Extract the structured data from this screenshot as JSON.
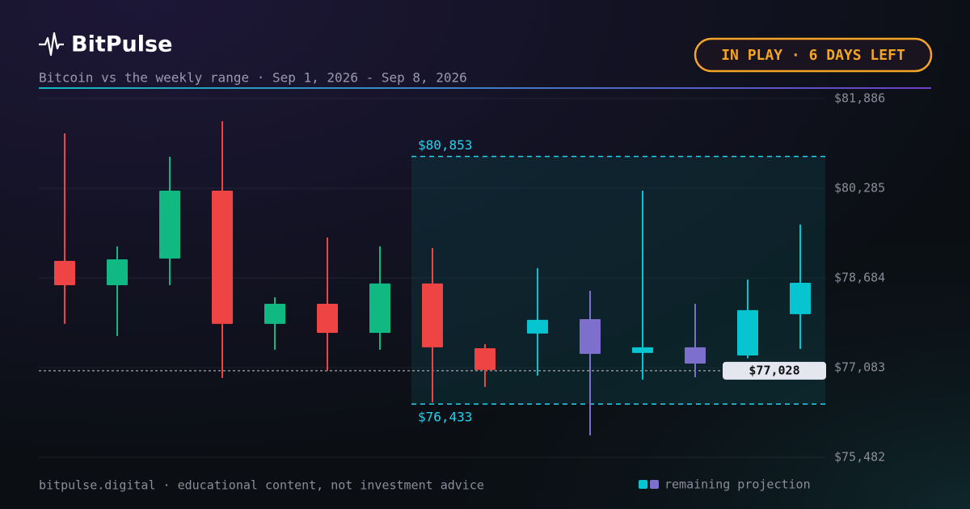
{
  "header": {
    "brand": "BitPulse",
    "subtitle": "Bitcoin vs the weekly range · Sep 1, 2026 - Sep 8, 2026",
    "badge": "IN PLAY · 6 DAYS LEFT"
  },
  "footer": {
    "note": "bitpulse.digital · educational content, not investment advice",
    "legend": "remaining projection"
  },
  "chart_data": {
    "type": "candlestick",
    "ylim": [
      75482,
      81886
    ],
    "yticks": [
      {
        "value": 81886,
        "label": "$81,886"
      },
      {
        "value": 80285,
        "label": "$80,285"
      },
      {
        "value": 78684,
        "label": "$78,684"
      },
      {
        "value": 77083,
        "label": "$77,083"
      },
      {
        "value": 75482,
        "label": "$75,482"
      }
    ],
    "grid": true,
    "colors": {
      "up": "#10b981",
      "down": "#ef4444",
      "projection_up": "#06c4d0",
      "projection_down": "#7c70cc"
    },
    "candles": [
      {
        "open": 78988,
        "high": 81266,
        "low": 77863,
        "close": 78555,
        "projection": false
      },
      {
        "open": 78555,
        "high": 79247,
        "low": 77647,
        "close": 79016,
        "projection": false
      },
      {
        "open": 79031,
        "high": 80848,
        "low": 78555,
        "close": 80242,
        "projection": false
      },
      {
        "open": 80242,
        "high": 81482,
        "low": 76897,
        "close": 77863,
        "projection": false
      },
      {
        "open": 77863,
        "high": 78339,
        "low": 77402,
        "close": 78223,
        "projection": false
      },
      {
        "open": 78223,
        "high": 79406,
        "low": 77026,
        "close": 77704,
        "projection": false
      },
      {
        "open": 77704,
        "high": 79247,
        "low": 77402,
        "close": 78584,
        "projection": false
      },
      {
        "open": 78584,
        "high": 79218,
        "low": 76464,
        "close": 77445,
        "projection": false
      },
      {
        "open": 77430,
        "high": 77502,
        "low": 76738,
        "close": 77041,
        "projection": false
      },
      {
        "open": 77690,
        "high": 78858,
        "low": 76940,
        "close": 77935,
        "projection": true
      },
      {
        "open": 77949,
        "high": 78454,
        "low": 75873,
        "close": 77329,
        "projection": true
      },
      {
        "open": 77344,
        "high": 80242,
        "low": 76868,
        "close": 77445,
        "projection": true
      },
      {
        "open": 77445,
        "high": 78223,
        "low": 76911,
        "close": 77156,
        "projection": true
      },
      {
        "open": 77300,
        "high": 78656,
        "low": 77250,
        "close": 78108,
        "projection": true
      },
      {
        "open": 78036,
        "high": 79637,
        "low": 77416,
        "close": 78598,
        "projection": true
      }
    ],
    "range": {
      "values": [
        80853,
        76433
      ],
      "value_labels": [
        "$80,853",
        "$76,433"
      ]
    },
    "last": {
      "value": 77028,
      "label": "$77,028"
    }
  }
}
